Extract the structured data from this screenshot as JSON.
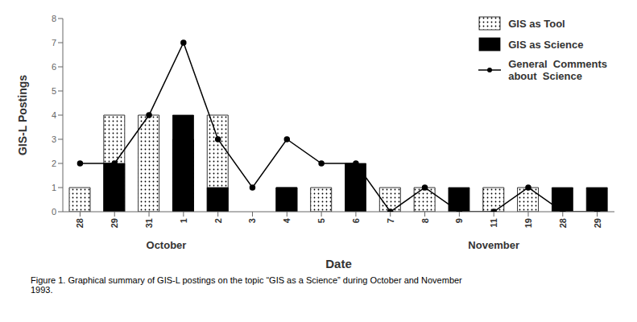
{
  "chart_data": {
    "type": "bar",
    "categories": [
      "28",
      "29",
      "31",
      "1",
      "2",
      "3",
      "4",
      "5",
      "6",
      "7",
      "8",
      "9",
      "11",
      "19",
      "28",
      "29"
    ],
    "series": [
      {
        "name": "GIS as Tool",
        "type": "bar",
        "color": "#ffffff",
        "values": [
          1,
          4,
          4,
          3,
          4,
          0,
          1,
          1,
          0,
          1,
          1,
          0,
          1,
          1,
          0,
          0
        ]
      },
      {
        "name": "GIS as Science",
        "type": "bar",
        "color": "#000000",
        "values": [
          0,
          2,
          0,
          4,
          1,
          0,
          1,
          0,
          2,
          0,
          0,
          1,
          0,
          0,
          1,
          1
        ]
      },
      {
        "name": "General  Comments\nabout  Science",
        "type": "line",
        "color": "#000000",
        "marker": "circle",
        "values": [
          2,
          2,
          4,
          7,
          3,
          1,
          3,
          2,
          2,
          0,
          1,
          0,
          0,
          1,
          0,
          0
        ]
      }
    ],
    "xlabel": "Date",
    "ylabel": "GIS-L Postings",
    "ylim": [
      0,
      8
    ],
    "yticks": [
      0,
      1,
      2,
      3,
      4,
      5,
      6,
      7,
      8
    ],
    "legend": "upper right",
    "grid": false,
    "annotations": [
      {
        "text": "October",
        "index_range": [
          0,
          5
        ]
      },
      {
        "text": "November",
        "index_range": [
          9,
          15
        ]
      },
      {
        "text": "Figure 1.  Graphical summary of GIS-L postings on the topic “GIS as a Science” during October and November\n1993."
      }
    ]
  }
}
